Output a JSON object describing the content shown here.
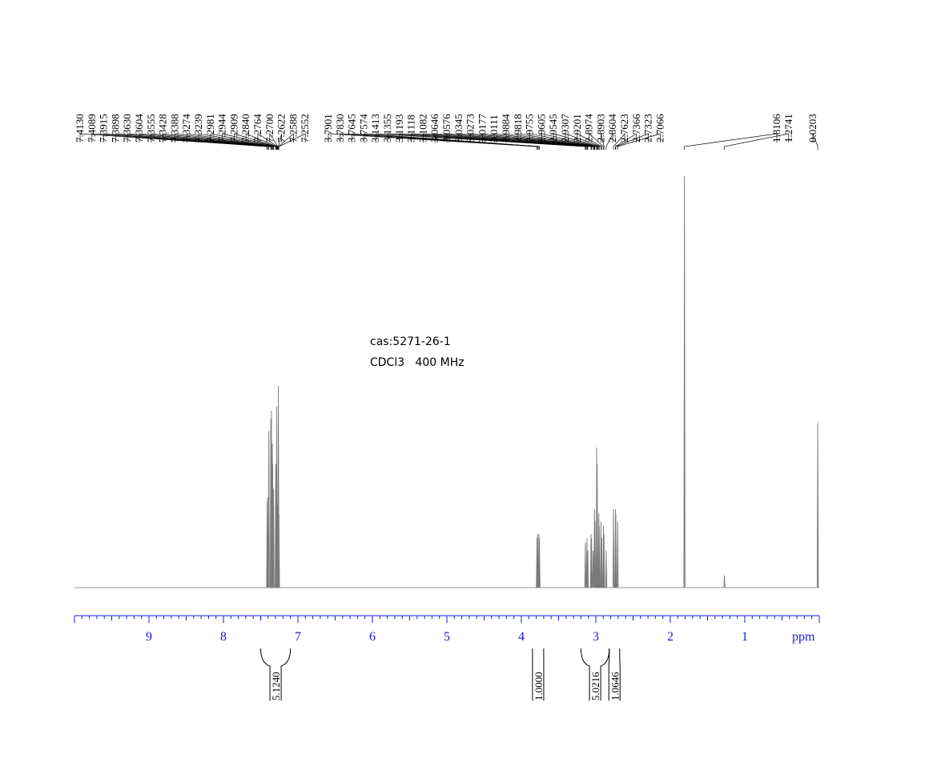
{
  "chart_data": {
    "type": "line",
    "title": "",
    "xlabel": "ppm",
    "ylabel": "",
    "xlim": [
      10.0,
      0.0
    ],
    "x_reversed": true,
    "ticks": [
      {
        "value": 9,
        "label": "9"
      },
      {
        "value": 8,
        "label": "8"
      },
      {
        "value": 7,
        "label": "7"
      },
      {
        "value": 6,
        "label": "6"
      },
      {
        "value": 5,
        "label": "5"
      },
      {
        "value": 4,
        "label": "4"
      },
      {
        "value": 3,
        "label": "3"
      },
      {
        "value": 2,
        "label": "2"
      },
      {
        "value": 1,
        "label": "1"
      }
    ],
    "annotations": [
      "cas:5271-26-1",
      "CDCl3   400 MHz"
    ],
    "peak_labels": [
      [
        "7.4130",
        "7.4089",
        "7.3915",
        "7.3898",
        "7.3630",
        "7.3604",
        "7.3555",
        "7.3428",
        "7.3388",
        "7.3274",
        "7.3239",
        "7.2981",
        "7.2944",
        "7.2909",
        "7.2840",
        "7.2764",
        "7.2700",
        "7.2622",
        "7.2588",
        "7.2552"
      ],
      [
        "3.7901",
        "3.7830",
        "3.7645",
        "3.7574",
        "3.1413",
        "3.1355",
        "3.1193",
        "3.1118",
        "3.1082",
        "3.0646",
        "3.0576",
        "3.0345",
        "3.0273",
        "3.0177",
        "3.0111",
        "2.9884",
        "2.9818",
        "2.9755",
        "2.9605",
        "2.9545",
        "2.9307",
        "2.9201",
        "2.8974",
        "2.8903",
        "2.8604",
        "2.7623",
        "2.7366",
        "2.7323",
        "2.7066"
      ],
      [
        "1.8106",
        "1.2741"
      ],
      [
        "0.0203"
      ]
    ],
    "peaks": [
      {
        "ppm": 7.413,
        "height": 0.21
      },
      {
        "ppm": 7.409,
        "height": 0.22
      },
      {
        "ppm": 7.39,
        "height": 0.38
      },
      {
        "ppm": 7.363,
        "height": 0.41
      },
      {
        "ppm": 7.356,
        "height": 0.43
      },
      {
        "ppm": 7.343,
        "height": 0.35
      },
      {
        "ppm": 7.339,
        "height": 0.3
      },
      {
        "ppm": 7.327,
        "height": 0.24
      },
      {
        "ppm": 7.298,
        "height": 0.3
      },
      {
        "ppm": 7.291,
        "height": 0.25
      },
      {
        "ppm": 7.284,
        "height": 0.44
      },
      {
        "ppm": 7.276,
        "height": 0.2
      },
      {
        "ppm": 7.262,
        "height": 0.49
      },
      {
        "ppm": 7.255,
        "height": 0.18
      },
      {
        "ppm": 3.79,
        "height": 0.12
      },
      {
        "ppm": 3.783,
        "height": 0.13
      },
      {
        "ppm": 3.765,
        "height": 0.13
      },
      {
        "ppm": 3.757,
        "height": 0.12
      },
      {
        "ppm": 3.141,
        "height": 0.11
      },
      {
        "ppm": 3.119,
        "height": 0.12
      },
      {
        "ppm": 3.108,
        "height": 0.09
      },
      {
        "ppm": 3.065,
        "height": 0.13
      },
      {
        "ppm": 3.057,
        "height": 0.12
      },
      {
        "ppm": 3.035,
        "height": 0.09
      },
      {
        "ppm": 3.018,
        "height": 0.19
      },
      {
        "ppm": 3.011,
        "height": 0.16
      },
      {
        "ppm": 2.988,
        "height": 0.34
      },
      {
        "ppm": 2.982,
        "height": 0.3
      },
      {
        "ppm": 2.96,
        "height": 0.18
      },
      {
        "ppm": 2.955,
        "height": 0.15
      },
      {
        "ppm": 2.931,
        "height": 0.16
      },
      {
        "ppm": 2.92,
        "height": 0.12
      },
      {
        "ppm": 2.897,
        "height": 0.15
      },
      {
        "ppm": 2.89,
        "height": 0.13
      },
      {
        "ppm": 2.86,
        "height": 0.09
      },
      {
        "ppm": 2.762,
        "height": 0.19
      },
      {
        "ppm": 2.737,
        "height": 0.19
      },
      {
        "ppm": 2.732,
        "height": 0.18
      },
      {
        "ppm": 2.707,
        "height": 0.16
      },
      {
        "ppm": 1.81,
        "height": 1.0
      },
      {
        "ppm": 1.274,
        "height": 0.03
      },
      {
        "ppm": 0.02,
        "height": 0.4
      }
    ],
    "integrals": [
      {
        "from": 7.5,
        "to": 7.1,
        "value": "5.1240"
      },
      {
        "from": 3.85,
        "to": 3.7,
        "value": "1.0000"
      },
      {
        "from": 3.2,
        "to": 2.82,
        "value": "5.0216"
      },
      {
        "from": 2.82,
        "to": 2.68,
        "value": "1.0646"
      }
    ],
    "colors": {
      "spectrum": "#7a7a7a",
      "axis": "#1818d8",
      "labels": "#000000"
    }
  }
}
